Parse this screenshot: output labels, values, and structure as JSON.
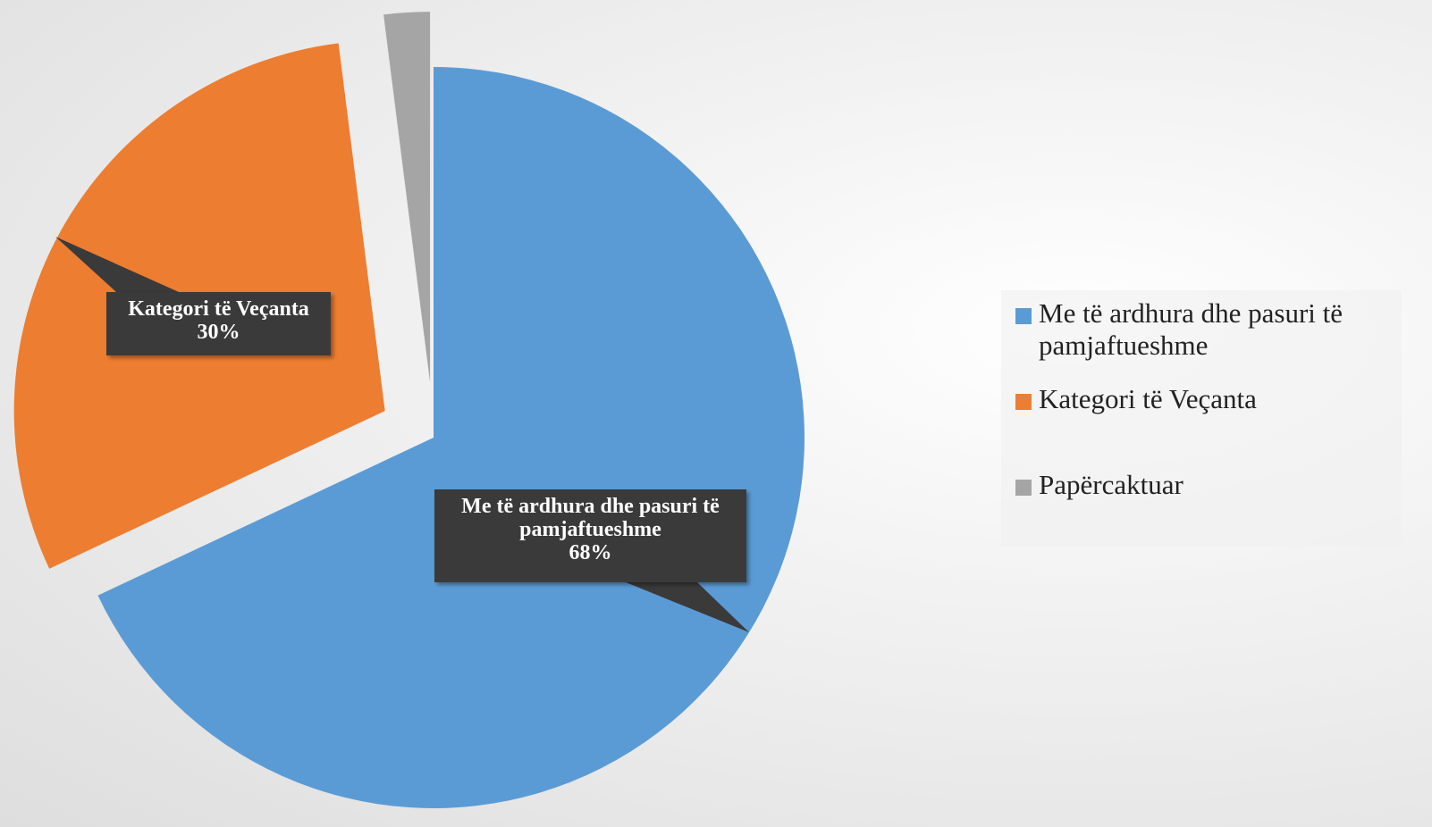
{
  "chart_data": {
    "type": "pie",
    "categories": [
      "Me të ardhura dhe pasuri të pamjaftueshme",
      "Kategori të Veçanta",
      "Papërcaktuar"
    ],
    "values": [
      68,
      30,
      2
    ],
    "value_labels": [
      "68%",
      "30%",
      null
    ],
    "colors": [
      "#5b9bd5",
      "#ed7d31",
      "#a5a5a5"
    ],
    "legend": "right"
  }
}
